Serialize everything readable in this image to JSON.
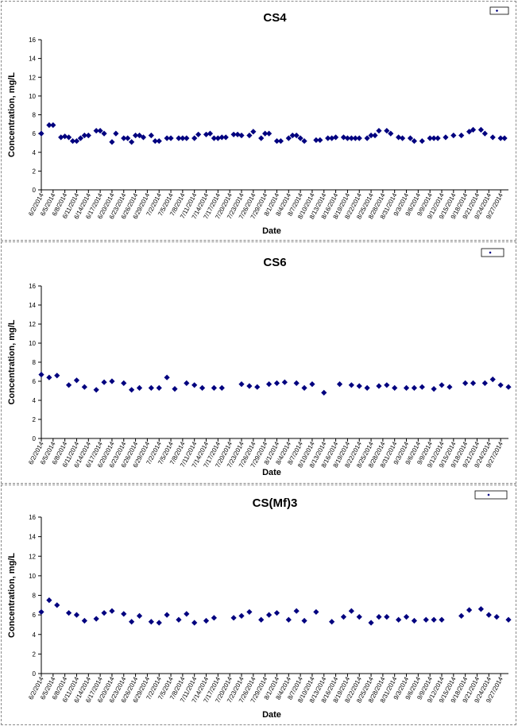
{
  "chart_data": [
    {
      "type": "scatter",
      "title": "CS4",
      "xlabel": "Date",
      "ylabel": "Concentration, mg/L",
      "ylim": [
        0,
        16
      ],
      "yticks": [
        0,
        2,
        4,
        6,
        8,
        10,
        12,
        14,
        16
      ],
      "xlim": [
        "6/2/2014",
        "9/29/2014"
      ],
      "xticks": [
        "6/2/2014",
        "6/5/2014",
        "6/8/2014",
        "6/11/2014",
        "6/14/2014",
        "6/17/2014",
        "6/20/2014",
        "6/23/2014",
        "6/26/2014",
        "6/29/2014",
        "7/2/2014",
        "7/5/2014",
        "7/8/2014",
        "7/11/2014",
        "7/14/2014",
        "7/17/2014",
        "7/20/2014",
        "7/23/2014",
        "7/26/2014",
        "7/29/2014",
        "8/1/2014",
        "8/4/2014",
        "8/7/2014",
        "8/10/2014",
        "8/13/2014",
        "8/16/2014",
        "8/19/2014",
        "8/22/2014",
        "8/25/2014",
        "8/28/2014",
        "8/31/2014",
        "9/3/2014",
        "9/6/2014",
        "9/9/2014",
        "9/12/2014",
        "9/15/2014",
        "9/18/2014",
        "9/21/2014",
        "9/24/2014",
        "9/27/2014"
      ],
      "grid": false,
      "legend": "top-right",
      "marker_color": "#00007f",
      "series": [
        {
          "x": [
            "6/2/2014",
            "6/4/2014",
            "6/5/2014",
            "6/7/2014",
            "6/8/2014",
            "6/9/2014",
            "6/10/2014",
            "6/11/2014",
            "6/12/2014",
            "6/13/2014",
            "6/14/2014",
            "6/16/2014",
            "6/17/2014",
            "6/18/2014",
            "6/20/2014",
            "6/21/2014",
            "6/23/2014",
            "6/24/2014",
            "6/25/2014",
            "6/26/2014",
            "6/27/2014",
            "6/28/2014",
            "6/30/2014",
            "7/1/2014",
            "7/2/2014",
            "7/4/2014",
            "7/5/2014",
            "7/7/2014",
            "7/8/2014",
            "7/9/2014",
            "7/11/2014",
            "7/12/2014",
            "7/14/2014",
            "7/15/2014",
            "7/16/2014",
            "7/17/2014",
            "7/18/2014",
            "7/19/2014",
            "7/21/2014",
            "7/22/2014",
            "7/23/2014",
            "7/25/2014",
            "7/26/2014",
            "7/28/2014",
            "7/29/2014",
            "7/30/2014",
            "8/1/2014",
            "8/2/2014",
            "8/4/2014",
            "8/5/2014",
            "8/6/2014",
            "8/7/2014",
            "8/8/2014",
            "8/11/2014",
            "8/12/2014",
            "8/14/2014",
            "8/15/2014",
            "8/16/2014",
            "8/18/2014",
            "8/19/2014",
            "8/20/2014",
            "8/21/2014",
            "8/22/2014",
            "8/24/2014",
            "8/25/2014",
            "8/26/2014",
            "8/27/2014",
            "8/29/2014",
            "8/30/2014",
            "9/1/2014",
            "9/2/2014",
            "9/4/2014",
            "9/5/2014",
            "9/7/2014",
            "9/9/2014",
            "9/10/2014",
            "9/11/2014",
            "9/13/2014",
            "9/15/2014",
            "9/17/2014",
            "9/19/2014",
            "9/20/2014",
            "9/22/2014",
            "9/23/2014",
            "9/25/2014",
            "9/27/2014",
            "9/28/2014"
          ],
          "y": [
            6.0,
            6.9,
            6.9,
            5.6,
            5.7,
            5.6,
            5.2,
            5.2,
            5.5,
            5.8,
            5.8,
            6.3,
            6.3,
            6.0,
            5.1,
            6.0,
            5.5,
            5.5,
            5.1,
            5.8,
            5.8,
            5.6,
            5.8,
            5.2,
            5.2,
            5.5,
            5.5,
            5.5,
            5.5,
            5.5,
            5.5,
            5.9,
            5.9,
            6.0,
            5.5,
            5.5,
            5.6,
            5.6,
            5.9,
            5.9,
            5.8,
            5.8,
            6.2,
            5.5,
            6.0,
            6.0,
            5.2,
            5.2,
            5.5,
            5.8,
            5.8,
            5.5,
            5.2,
            5.3,
            5.3,
            5.5,
            5.5,
            5.6,
            5.6,
            5.5,
            5.5,
            5.5,
            5.5,
            5.5,
            5.8,
            5.8,
            6.3,
            6.3,
            6.0,
            5.6,
            5.5,
            5.5,
            5.2,
            5.2,
            5.5,
            5.5,
            5.5,
            5.6,
            5.8,
            5.8,
            6.2,
            6.4,
            6.4,
            6.0,
            5.6,
            5.5,
            5.5
          ]
        }
      ]
    },
    {
      "type": "scatter",
      "title": "CS6",
      "xlabel": "Date",
      "ylabel": "Concentration, mg/L",
      "ylim": [
        0,
        16
      ],
      "yticks": [
        0,
        2,
        4,
        6,
        8,
        10,
        12,
        14,
        16
      ],
      "xlim": [
        "6/2/2014",
        "9/29/2014"
      ],
      "xticks": [
        "6/2/2014",
        "6/5/2014",
        "6/8/2014",
        "6/11/2014",
        "6/14/2014",
        "6/17/2014",
        "6/20/2014",
        "6/23/2014",
        "6/26/2014",
        "6/29/2014",
        "7/2/2014",
        "7/5/2014",
        "7/8/2014",
        "7/11/2014",
        "7/14/2014",
        "7/17/2014",
        "7/20/2014",
        "7/23/2014",
        "7/26/2014",
        "7/29/2014",
        "8/1/2014",
        "8/4/2014",
        "8/7/2014",
        "8/10/2014",
        "8/13/2014",
        "8/16/2014",
        "8/19/2014",
        "8/22/2014",
        "8/25/2014",
        "8/28/2014",
        "8/31/2014",
        "9/3/2014",
        "9/6/2014",
        "9/9/2014",
        "9/12/2014",
        "9/15/2014",
        "9/18/2014",
        "9/21/2014",
        "9/24/2014",
        "9/27/2014"
      ],
      "grid": false,
      "legend": "top-right",
      "marker_color": "#00007f",
      "series": [
        {
          "x": [
            "6/2/2014",
            "6/4/2014",
            "6/6/2014",
            "6/9/2014",
            "6/11/2014",
            "6/13/2014",
            "6/16/2014",
            "6/18/2014",
            "6/20/2014",
            "6/23/2014",
            "6/25/2014",
            "6/27/2014",
            "6/30/2014",
            "7/2/2014",
            "7/4/2014",
            "7/6/2014",
            "7/9/2014",
            "7/11/2014",
            "7/13/2014",
            "7/16/2014",
            "7/18/2014",
            "7/23/2014",
            "7/25/2014",
            "7/27/2014",
            "7/30/2014",
            "8/1/2014",
            "8/3/2014",
            "8/6/2014",
            "8/8/2014",
            "8/10/2014",
            "8/13/2014",
            "8/17/2014",
            "8/20/2014",
            "8/22/2014",
            "8/24/2014",
            "8/27/2014",
            "8/29/2014",
            "8/31/2014",
            "9/3/2014",
            "9/5/2014",
            "9/7/2014",
            "9/10/2014",
            "9/12/2014",
            "9/14/2014",
            "9/18/2014",
            "9/20/2014",
            "9/23/2014",
            "9/25/2014",
            "9/27/2014",
            "9/29/2014"
          ],
          "y": [
            6.7,
            6.4,
            6.6,
            5.6,
            6.1,
            5.4,
            5.1,
            5.9,
            6.0,
            5.8,
            5.1,
            5.3,
            5.3,
            5.3,
            6.4,
            5.2,
            5.8,
            5.6,
            5.3,
            5.3,
            5.3,
            5.7,
            5.5,
            5.4,
            5.7,
            5.8,
            5.9,
            5.8,
            5.3,
            5.7,
            4.8,
            5.7,
            5.6,
            5.5,
            5.3,
            5.5,
            5.6,
            5.3,
            5.3,
            5.3,
            5.4,
            5.2,
            5.6,
            5.4,
            5.8,
            5.8,
            5.8,
            6.2,
            5.6,
            5.4
          ]
        }
      ]
    },
    {
      "type": "scatter",
      "title": "CS(Mf)3",
      "xlabel": "Date",
      "ylabel": "Concentration, mg/L",
      "ylim": [
        0,
        16
      ],
      "yticks": [
        0,
        2,
        4,
        6,
        8,
        10,
        12,
        14,
        16
      ],
      "xlim": [
        "6/2/2014",
        "9/29/2014"
      ],
      "xticks": [
        "6/2/2014",
        "6/5/2014",
        "6/8/2014",
        "6/11/2014",
        "6/14/2014",
        "6/17/2014",
        "6/20/2014",
        "6/23/2014",
        "6/26/2014",
        "6/29/2014",
        "7/2/2014",
        "7/5/2014",
        "7/8/2014",
        "7/11/2014",
        "7/14/2014",
        "7/17/2014",
        "7/20/2014",
        "7/23/2014",
        "7/26/2014",
        "7/29/2014",
        "8/1/2014",
        "8/4/2014",
        "8/7/2014",
        "8/10/2014",
        "8/13/2014",
        "8/16/2014",
        "8/19/2014",
        "8/22/2014",
        "8/25/2014",
        "8/28/2014",
        "8/31/2014",
        "9/3/2014",
        "9/6/2014",
        "9/9/2014",
        "9/12/2014",
        "9/15/2014",
        "9/18/2014",
        "9/21/2014",
        "9/24/2014",
        "9/27/2014"
      ],
      "grid": false,
      "legend": "top-right",
      "marker_color": "#00007f",
      "series": [
        {
          "x": [
            "6/2/2014",
            "6/4/2014",
            "6/6/2014",
            "6/9/2014",
            "6/11/2014",
            "6/13/2014",
            "6/16/2014",
            "6/18/2014",
            "6/20/2014",
            "6/23/2014",
            "6/25/2014",
            "6/27/2014",
            "6/30/2014",
            "7/2/2014",
            "7/4/2014",
            "7/7/2014",
            "7/9/2014",
            "7/11/2014",
            "7/14/2014",
            "7/16/2014",
            "7/21/2014",
            "7/23/2014",
            "7/25/2014",
            "7/28/2014",
            "7/30/2014",
            "8/1/2014",
            "8/4/2014",
            "8/6/2014",
            "8/8/2014",
            "8/11/2014",
            "8/15/2014",
            "8/18/2014",
            "8/20/2014",
            "8/22/2014",
            "8/25/2014",
            "8/27/2014",
            "8/29/2014",
            "9/1/2014",
            "9/3/2014",
            "9/5/2014",
            "9/8/2014",
            "9/10/2014",
            "9/12/2014",
            "9/17/2014",
            "9/19/2014",
            "9/22/2014",
            "9/24/2014",
            "9/26/2014",
            "9/29/2014"
          ],
          "y": [
            6.3,
            7.5,
            7.0,
            6.2,
            6.0,
            5.4,
            5.6,
            6.2,
            6.4,
            6.1,
            5.3,
            5.9,
            5.3,
            5.2,
            6.0,
            5.5,
            6.1,
            5.2,
            5.4,
            5.7,
            5.7,
            5.9,
            6.3,
            5.5,
            6.0,
            6.2,
            5.5,
            6.4,
            5.4,
            6.3,
            5.3,
            5.8,
            6.4,
            5.8,
            5.2,
            5.8,
            5.8,
            5.5,
            5.8,
            5.4,
            5.5,
            5.5,
            5.5,
            5.9,
            6.5,
            6.6,
            6.0,
            5.8,
            5.5
          ]
        }
      ]
    }
  ]
}
